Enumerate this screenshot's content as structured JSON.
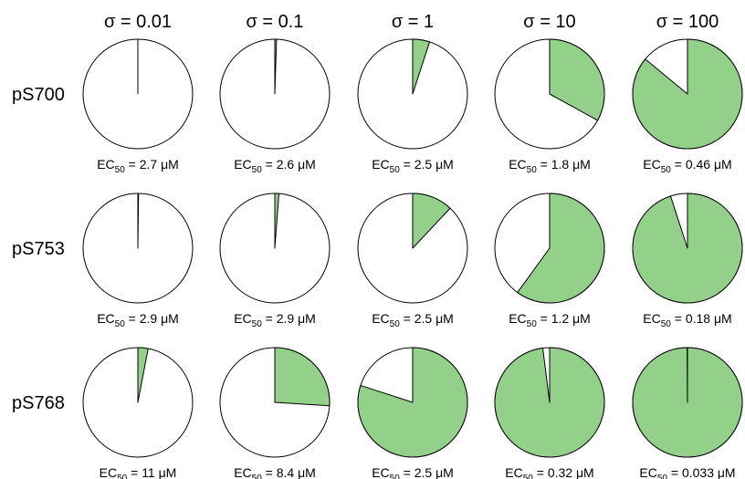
{
  "chart_data": {
    "type": "pie",
    "columns": [
      "σ = 0.01",
      "σ = 0.1",
      "σ = 1",
      "σ = 10",
      "σ = 100"
    ],
    "rows": [
      "pS700",
      "pS753",
      "pS768"
    ],
    "fill_color": "#93d18a",
    "empty_color": "#ffffff",
    "stroke_color": "#000000",
    "fraction_note": "green wedge = fraction of circle filled clockwise from 12 o'clock",
    "cells": [
      [
        {
          "fraction": 0.0,
          "ec50_value": "2.7 μM"
        },
        {
          "fraction": 0.005,
          "ec50_value": "2.6 μM"
        },
        {
          "fraction": 0.05,
          "ec50_value": "2.5 μM"
        },
        {
          "fraction": 0.33,
          "ec50_value": "1.8 μM"
        },
        {
          "fraction": 0.86,
          "ec50_value": "0.46 μM"
        }
      ],
      [
        {
          "fraction": 0.002,
          "ec50_value": "2.9 μM"
        },
        {
          "fraction": 0.012,
          "ec50_value": "2.9 μM"
        },
        {
          "fraction": 0.12,
          "ec50_value": "2.5 μM"
        },
        {
          "fraction": 0.6,
          "ec50_value": "1.2 μM"
        },
        {
          "fraction": 0.95,
          "ec50_value": "0.18 μM"
        }
      ],
      [
        {
          "fraction": 0.03,
          "ec50_value": "11 μM"
        },
        {
          "fraction": 0.26,
          "ec50_value": "8.4 μM"
        },
        {
          "fraction": 0.8,
          "ec50_value": "2.5 μM"
        },
        {
          "fraction": 0.98,
          "ec50_value": "0.32 μM"
        },
        {
          "fraction": 0.999,
          "ec50_value": "0.033 μM"
        }
      ]
    ],
    "label_prefix": "EC",
    "label_subscript": "50",
    "label_equals": " = "
  }
}
